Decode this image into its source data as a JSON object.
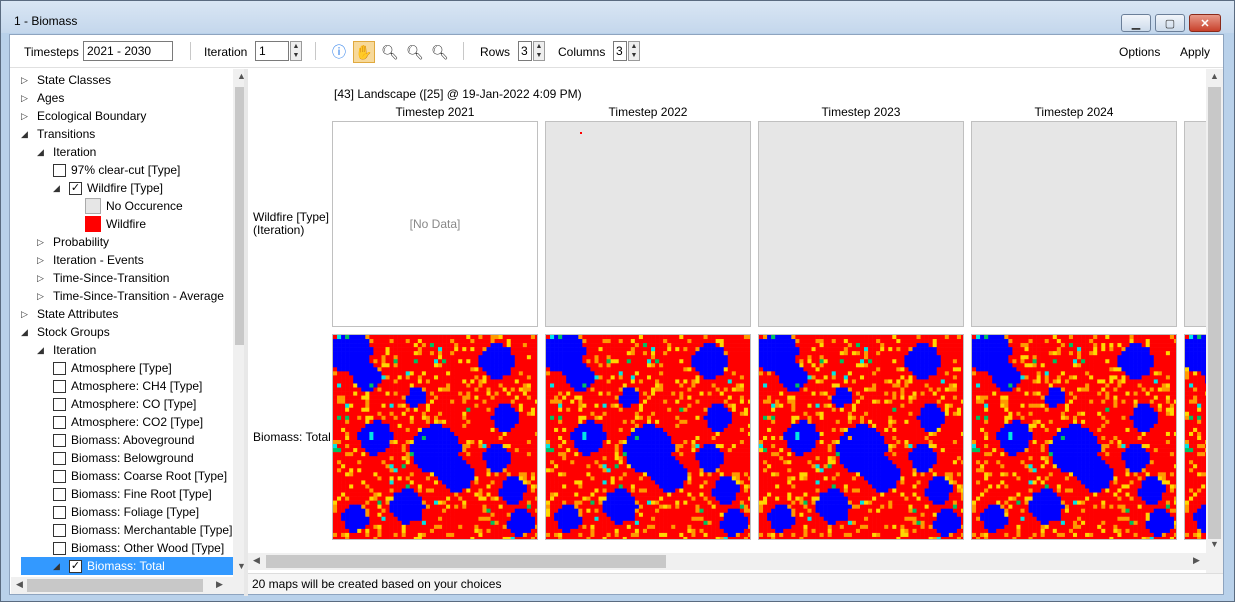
{
  "window": {
    "title": "1 - Biomass"
  },
  "toolbar": {
    "timesteps_label": "Timesteps",
    "timesteps_value": "2021 - 2030",
    "iteration_label": "Iteration",
    "iteration_value": "1",
    "rows_label": "Rows",
    "rows_value": "3",
    "columns_label": "Columns",
    "columns_value": "3",
    "options_label": "Options",
    "apply_label": "Apply"
  },
  "tree": {
    "items": [
      {
        "label": "State Classes",
        "level": 0,
        "expander": "right"
      },
      {
        "label": "Ages",
        "level": 0,
        "expander": "right"
      },
      {
        "label": "Ecological Boundary",
        "level": 0,
        "expander": "right"
      },
      {
        "label": "Transitions",
        "level": 0,
        "expander": "down"
      },
      {
        "label": "Iteration",
        "level": 1,
        "expander": "down"
      },
      {
        "label": "97% clear-cut [Type]",
        "level": 2,
        "checkbox": false
      },
      {
        "label": "Wildfire [Type]",
        "level": 2,
        "checkbox": true,
        "expander": "down"
      },
      {
        "label": "No Occurence",
        "level": 3,
        "swatch": "#e6e6e6"
      },
      {
        "label": "Wildfire",
        "level": 3,
        "swatch": "#ff0000"
      },
      {
        "label": "Probability",
        "level": 1,
        "expander": "right"
      },
      {
        "label": "Iteration - Events",
        "level": 1,
        "expander": "right"
      },
      {
        "label": "Time-Since-Transition",
        "level": 1,
        "expander": "right"
      },
      {
        "label": "Time-Since-Transition - Average",
        "level": 1,
        "expander": "right"
      },
      {
        "label": "State Attributes",
        "level": 0,
        "expander": "right"
      },
      {
        "label": "Stock Groups",
        "level": 0,
        "expander": "down"
      },
      {
        "label": "Iteration",
        "level": 1,
        "expander": "down"
      },
      {
        "label": "Atmosphere [Type]",
        "level": 2,
        "checkbox": false
      },
      {
        "label": "Atmosphere: CH4 [Type]",
        "level": 2,
        "checkbox": false
      },
      {
        "label": "Atmosphere: CO [Type]",
        "level": 2,
        "checkbox": false
      },
      {
        "label": "Atmosphere: CO2 [Type]",
        "level": 2,
        "checkbox": false
      },
      {
        "label": "Biomass: Aboveground",
        "level": 2,
        "checkbox": false
      },
      {
        "label": "Biomass: Belowground",
        "level": 2,
        "checkbox": false
      },
      {
        "label": "Biomass: Coarse Root [Type]",
        "level": 2,
        "checkbox": false
      },
      {
        "label": "Biomass: Fine Root [Type]",
        "level": 2,
        "checkbox": false
      },
      {
        "label": "Biomass: Foliage [Type]",
        "level": 2,
        "checkbox": false
      },
      {
        "label": "Biomass: Merchantable [Type]",
        "level": 2,
        "checkbox": false
      },
      {
        "label": "Biomass: Other Wood [Type]",
        "level": 2,
        "checkbox": false
      },
      {
        "label": "Biomass: Total",
        "level": 2,
        "checkbox": true,
        "expander": "down",
        "selected": true
      }
    ]
  },
  "map": {
    "header": "[43] Landscape ([25] @ 19-Jan-2022 4:09 PM)",
    "columns": [
      "Timestep 2021",
      "Timestep 2022",
      "Timestep 2023",
      "Timestep 2024"
    ],
    "rows": [
      {
        "label": "Wildfire [Type]\n(Iteration)",
        "label_line1": "Wildfire [Type]",
        "label_line2": "(Iteration)"
      },
      {
        "label_line1": "Biomass: Total",
        "label_line2": ""
      }
    ],
    "no_data": "[No Data]",
    "colors": {
      "red": "#ff0000",
      "blue": "#0000ff",
      "yellow": "#ffd700",
      "orange": "#ff9900",
      "cyan": "#00e5e5",
      "green": "#00c060",
      "gray": "#e6e6e6"
    }
  },
  "status": {
    "message": "20 maps will be created based on your choices"
  }
}
